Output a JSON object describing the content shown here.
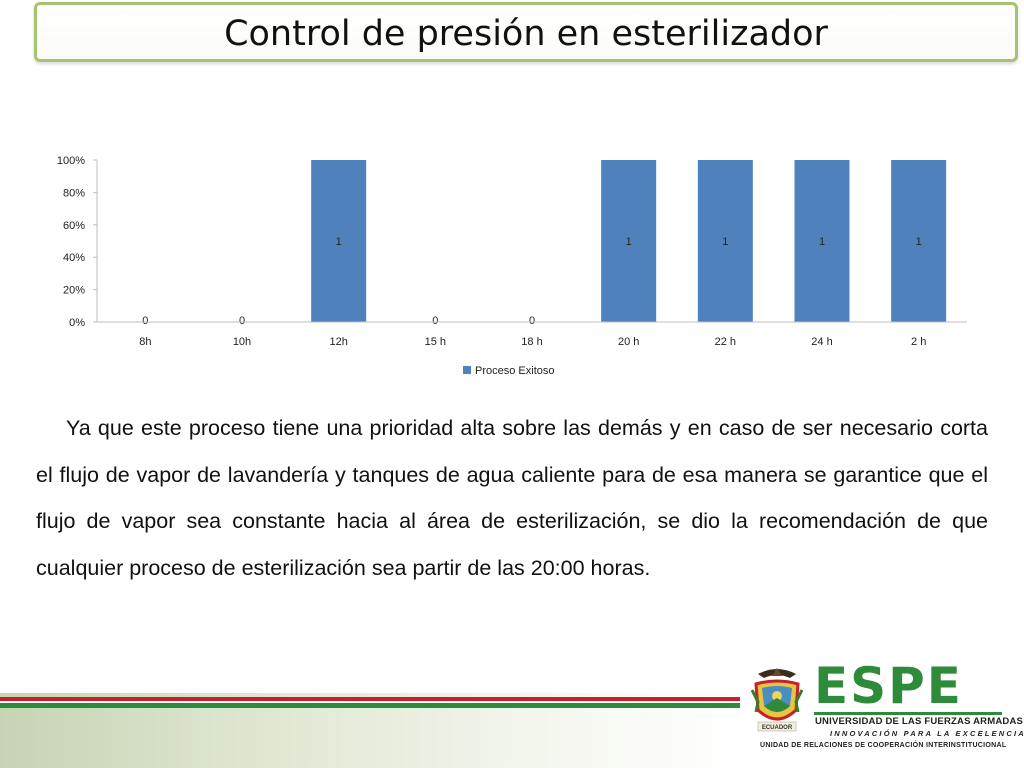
{
  "slide": {
    "title": "Control de presión en esterilizador",
    "body": "Ya que este proceso tiene una prioridad alta sobre las demás y en caso de ser necesario corta el flujo de vapor de lavandería y tanques de agua caliente para de esa manera se garantice que el flujo de vapor sea constante hacia al área de esterilización,  se dio la recomendación de que cualquier proceso de esterilización sea  partir de las 20:00 horas."
  },
  "logo": {
    "brand": "ESPE",
    "university": "UNIVERSIDAD DE LAS FUERZAS ARMADAS",
    "motto": "INNOVACIÓN PARA LA EXCELENCIA",
    "unit": "UNIDAD DE RELACIONES DE COOPERACIÓN INTERINSTITUCIONAL",
    "seal_text": "ECUADOR",
    "color": "#2e8b3a"
  },
  "colors": {
    "bar": "#4f81bd",
    "title_border": "#a6c36f"
  },
  "chart_data": {
    "type": "bar",
    "categories": [
      "8h",
      "10h",
      "12h",
      "15 h",
      "18 h",
      "20 h",
      "22 h",
      "24 h",
      "2 h"
    ],
    "series": [
      {
        "name": "Proceso Exitoso",
        "values": [
          0,
          0,
          1,
          0,
          0,
          1,
          1,
          1,
          1
        ]
      }
    ],
    "data_labels": [
      "0",
      "0",
      "1",
      "0",
      "0",
      "1",
      "1",
      "1",
      "1"
    ],
    "yticks": [
      "0%",
      "20%",
      "40%",
      "60%",
      "80%",
      "100%"
    ],
    "ylim": [
      0,
      1
    ],
    "legend": "bottom",
    "grid": false
  }
}
